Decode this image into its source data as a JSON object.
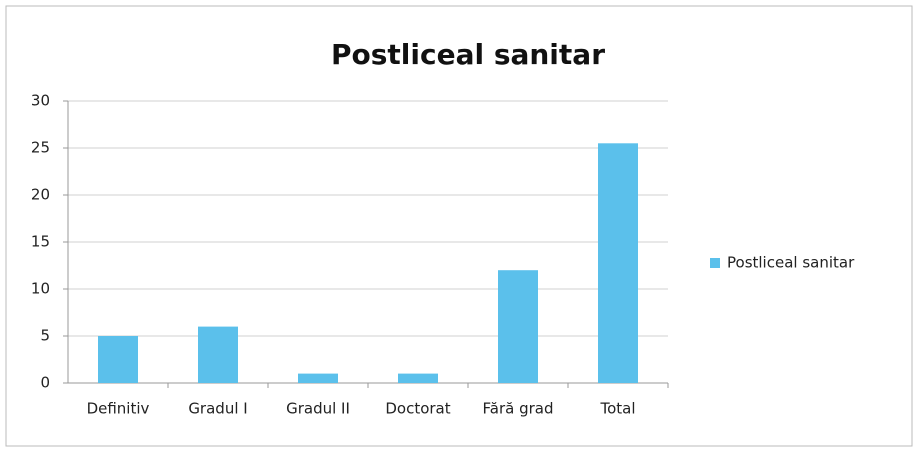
{
  "chart_data": {
    "type": "bar",
    "title": "Postliceal sanitar",
    "categories": [
      "Definitiv",
      "Gradul I",
      "Gradul II",
      "Doctorat",
      "Fără grad",
      "Total"
    ],
    "series": [
      {
        "name": "Postliceal sanitar",
        "color": "#5bc0eb",
        "values": [
          5,
          6,
          1,
          1,
          12,
          25.5
        ]
      }
    ],
    "ylim": [
      0,
      30
    ],
    "yticks": [
      0,
      5,
      10,
      15,
      20,
      25,
      30
    ],
    "grid": true,
    "legend": "right"
  }
}
